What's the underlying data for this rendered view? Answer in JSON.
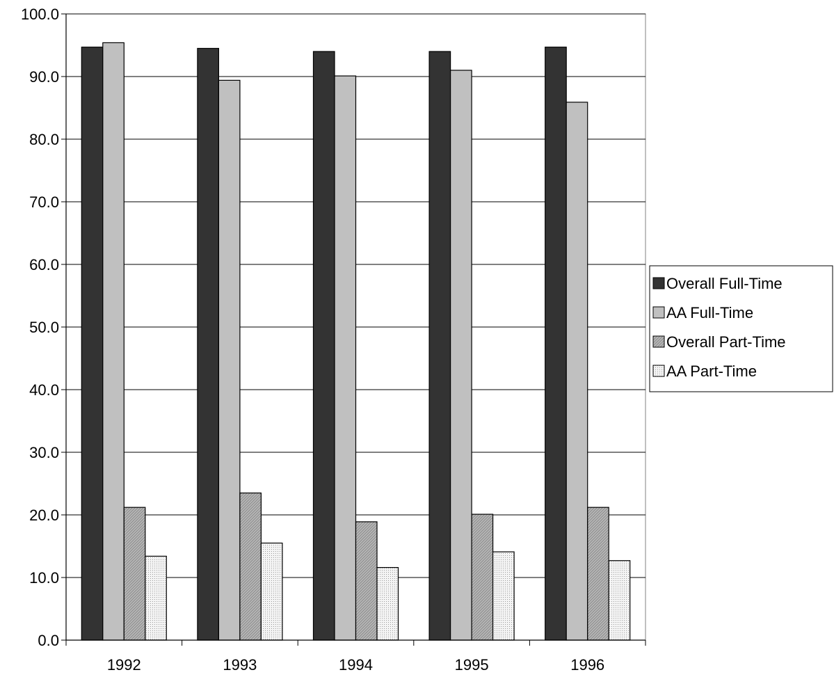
{
  "chart_data": {
    "type": "bar",
    "title": "",
    "xlabel": "",
    "ylabel": "",
    "categories": [
      "1992",
      "1993",
      "1994",
      "1995",
      "1996"
    ],
    "ylim": [
      0,
      100
    ],
    "yticks": [
      "0.0",
      "10.0",
      "20.0",
      "30.0",
      "40.0",
      "50.0",
      "60.0",
      "70.0",
      "80.0",
      "90.0",
      "100.0"
    ],
    "grid": true,
    "legend_position": "right",
    "series": [
      {
        "name": "Overall Full-Time",
        "values": [
          94.7,
          94.5,
          94.0,
          94.0,
          94.7
        ],
        "color": "#333333",
        "pattern": "solid"
      },
      {
        "name": "AA Full-Time",
        "values": [
          95.4,
          89.4,
          90.1,
          91.0,
          85.9
        ],
        "color": "#c0c0c0",
        "pattern": "solid"
      },
      {
        "name": "Overall Part-Time",
        "values": [
          21.2,
          23.5,
          18.9,
          20.1,
          21.2
        ],
        "color": "#b4b4b4",
        "pattern": "diagonal"
      },
      {
        "name": "AA Part-Time",
        "values": [
          13.4,
          15.5,
          11.6,
          14.1,
          12.7
        ],
        "color": "#f0f0f0",
        "pattern": "dots"
      }
    ]
  }
}
